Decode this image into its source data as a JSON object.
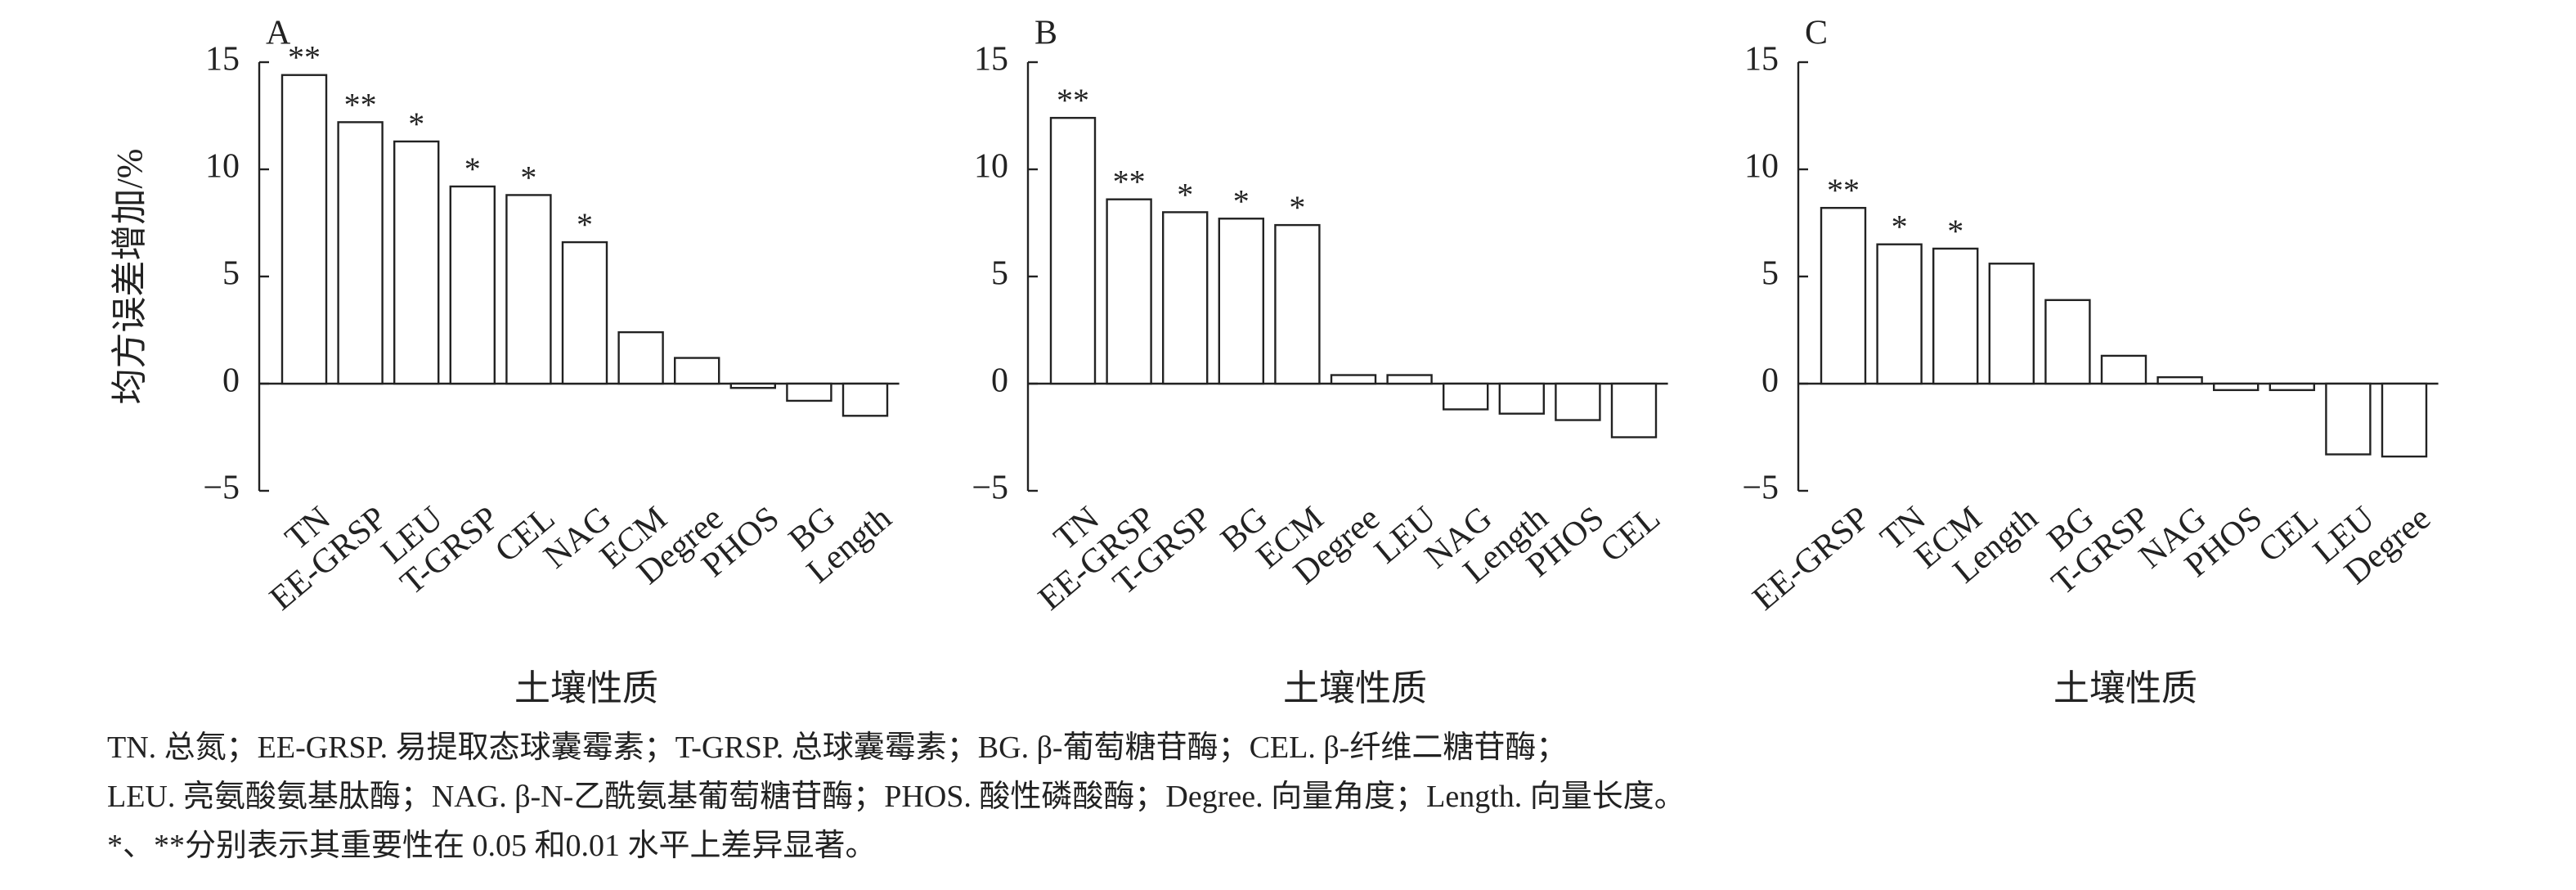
{
  "chart_data": [
    {
      "type": "bar",
      "panel": "A",
      "y_label": "均方误差增加/%",
      "x_label": "土壤性质",
      "categories": [
        "TN",
        "EE-GRSP",
        "LEU",
        "T-GRSP",
        "CEL",
        "NAG",
        "ECM",
        "Degree",
        "PHOS",
        "BG",
        "Length"
      ],
      "values": [
        14.4,
        12.2,
        11.3,
        9.2,
        8.8,
        6.6,
        2.4,
        1.2,
        -0.2,
        -0.8,
        -1.5
      ],
      "significance": [
        "**",
        "**",
        "*",
        "*",
        "*",
        "*",
        null,
        null,
        null,
        null,
        null
      ],
      "color": "#ffffff",
      "ylim": [
        -5,
        15
      ],
      "yticks": [
        {
          "value": -5,
          "label": "−5"
        },
        0,
        5,
        10,
        15
      ]
    },
    {
      "type": "bar",
      "panel": "B",
      "x_label": "土壤性质",
      "categories": [
        "TN",
        "EE-GRSP",
        "T-GRSP",
        "BG",
        "ECM",
        "Degree",
        "LEU",
        "NAG",
        "Length",
        "PHOS",
        "CEL"
      ],
      "values": [
        12.4,
        8.6,
        8.0,
        7.7,
        7.4,
        0.4,
        0.4,
        -1.2,
        -1.4,
        -1.7,
        -2.5
      ],
      "significance": [
        "**",
        "**",
        "*",
        "*",
        "*",
        null,
        null,
        null,
        null,
        null,
        null
      ],
      "color": "#ffffff",
      "ylim": [
        -5,
        15
      ],
      "yticks": [
        {
          "value": -5,
          "label": "−5"
        },
        0,
        5,
        10,
        15
      ]
    },
    {
      "type": "bar",
      "panel": "C",
      "x_label": "土壤性质",
      "categories": [
        "EE-GRSP",
        "TN",
        "ECM",
        "Length",
        "BG",
        "T-GRSP",
        "NAG",
        "PHOS",
        "CEL",
        "LEU",
        "Degree"
      ],
      "values": [
        8.2,
        6.5,
        6.3,
        5.6,
        3.9,
        1.3,
        0.3,
        -0.3,
        -0.3,
        -3.3,
        -3.4
      ],
      "significance": [
        "**",
        "*",
        "*",
        null,
        null,
        null,
        null,
        null,
        null,
        null,
        null
      ],
      "color": "#ffffff",
      "ylim": [
        -5,
        15
      ],
      "yticks": [
        {
          "value": -5,
          "label": "−5"
        },
        0,
        5,
        10,
        15
      ]
    }
  ],
  "footnote": [
    "TN. 总氮；EE-GRSP. 易提取态球囊霉素；T-GRSP. 总球囊霉素；BG. β-葡萄糖苷酶；CEL. β-纤维二糖苷酶；",
    "LEU. 亮氨酸氨基肽酶；NAG. β-N-乙酰氨基葡萄糖苷酶；PHOS. 酸性磷酸酶；Degree. 向量角度；Length. 向量长度。",
    "*、**分别表示其重要性在 0.05 和0.01 水平上差异显著。"
  ]
}
